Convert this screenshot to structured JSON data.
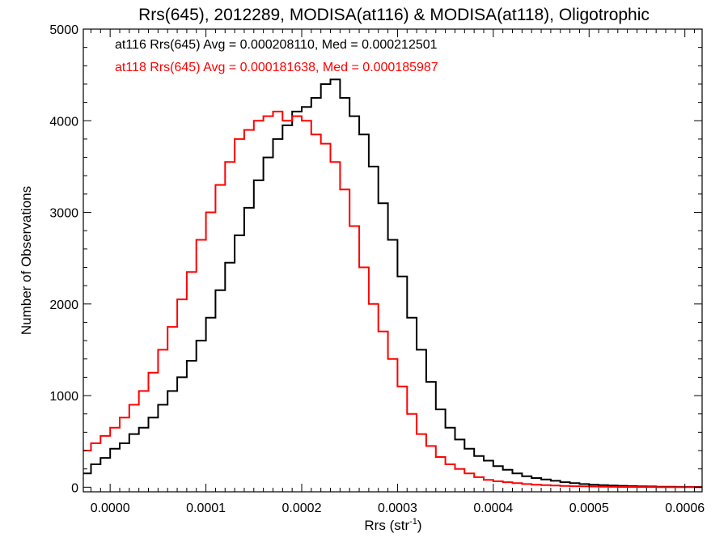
{
  "chart_data": {
    "type": "line",
    "title": "Rrs(645), 2012289, MODISA(at116) & MODISA(at118), Oligotrophic",
    "xlabel": {
      "base": "Rrs (str",
      "sup": "-1",
      "close": ")"
    },
    "ylabel": "Number of Observations",
    "xlim": [
      -2.8e-05,
      0.000618
    ],
    "ylim": [
      -50,
      5000
    ],
    "xticks": [
      0.0,
      0.0001,
      0.0002,
      0.0003,
      0.0004,
      0.0005,
      0.0006
    ],
    "xtick_labels": [
      "0.0000",
      "0.0001",
      "0.0002",
      "0.0003",
      "0.0004",
      "0.0005",
      "0.0006"
    ],
    "yticks": [
      0,
      1000,
      2000,
      3000,
      4000,
      5000
    ],
    "ytick_labels": [
      "0",
      "1000",
      "2000",
      "3000",
      "4000",
      "5000"
    ],
    "step": true,
    "grid": false,
    "legend_placement": "top-left",
    "series": [
      {
        "name": "at116",
        "color": "#000000",
        "legend_text": "at116 Rrs(645) Avg = 0.000208110, Med = 0.000212501",
        "x": [
          -2.8e-05,
          -2e-05,
          -1e-05,
          0.0,
          1e-05,
          2e-05,
          3e-05,
          4e-05,
          5e-05,
          6e-05,
          7e-05,
          8e-05,
          9e-05,
          0.0001,
          0.00011,
          0.00012,
          0.00013,
          0.00014,
          0.00015,
          0.00016,
          0.00017,
          0.00018,
          0.00019,
          0.0002,
          0.00021,
          0.00022,
          0.00023,
          0.00024,
          0.00025,
          0.00026,
          0.00027,
          0.00028,
          0.00029,
          0.0003,
          0.00031,
          0.00032,
          0.00033,
          0.00034,
          0.00035,
          0.00036,
          0.00037,
          0.00038,
          0.00039,
          0.0004,
          0.00041,
          0.00042,
          0.00043,
          0.00044,
          0.00045,
          0.00046,
          0.00047,
          0.00048,
          0.00049,
          0.0005,
          0.00051,
          0.00052,
          0.00053,
          0.00054,
          0.00055,
          0.00056,
          0.00057,
          0.00058,
          0.00059,
          0.0006,
          0.000618
        ],
        "y": [
          150,
          250,
          320,
          420,
          480,
          580,
          650,
          760,
          900,
          1050,
          1200,
          1380,
          1600,
          1850,
          2150,
          2450,
          2750,
          3050,
          3350,
          3600,
          3800,
          3950,
          4100,
          4150,
          4250,
          4400,
          4450,
          4250,
          4050,
          3850,
          3500,
          3100,
          2700,
          2300,
          1850,
          1500,
          1150,
          850,
          650,
          520,
          420,
          340,
          290,
          230,
          190,
          150,
          120,
          100,
          85,
          70,
          55,
          45,
          35,
          28,
          22,
          18,
          15,
          12,
          10,
          8,
          6,
          5,
          4,
          3,
          2
        ]
      },
      {
        "name": "at118",
        "color": "#ff0000",
        "legend_text": "at118 Rrs(645) Avg = 0.000181638, Med = 0.000185987",
        "x": [
          -2.8e-05,
          -2e-05,
          -1e-05,
          0.0,
          1e-05,
          2e-05,
          3e-05,
          4e-05,
          5e-05,
          6e-05,
          7e-05,
          8e-05,
          9e-05,
          0.0001,
          0.00011,
          0.00012,
          0.00013,
          0.00014,
          0.00015,
          0.00016,
          0.00017,
          0.00018,
          0.00019,
          0.0002,
          0.00021,
          0.00022,
          0.00023,
          0.00024,
          0.00025,
          0.00026,
          0.00027,
          0.00028,
          0.00029,
          0.0003,
          0.00031,
          0.00032,
          0.00033,
          0.00034,
          0.00035,
          0.00036,
          0.00037,
          0.00038,
          0.00039,
          0.0004,
          0.00041,
          0.00042,
          0.00043,
          0.00044,
          0.00045,
          0.00046,
          0.00047,
          0.00048,
          0.00049,
          0.0005,
          0.00051,
          0.00052,
          0.00053,
          0.00054,
          0.00055,
          0.00056,
          0.00057,
          0.00058,
          0.00059,
          0.0006,
          0.000618
        ],
        "y": [
          400,
          480,
          560,
          650,
          760,
          900,
          1050,
          1250,
          1500,
          1750,
          2050,
          2350,
          2700,
          3000,
          3300,
          3550,
          3800,
          3900,
          4000,
          4050,
          4100,
          4000,
          4050,
          4000,
          3850,
          3750,
          3550,
          3250,
          2850,
          2400,
          2000,
          1700,
          1400,
          1100,
          800,
          580,
          450,
          330,
          250,
          200,
          150,
          110,
          80,
          65,
          55,
          45,
          35,
          28,
          22,
          18,
          14,
          11,
          9,
          7,
          5,
          4,
          3,
          3,
          2,
          2,
          1,
          1,
          1,
          1,
          1
        ]
      }
    ]
  }
}
